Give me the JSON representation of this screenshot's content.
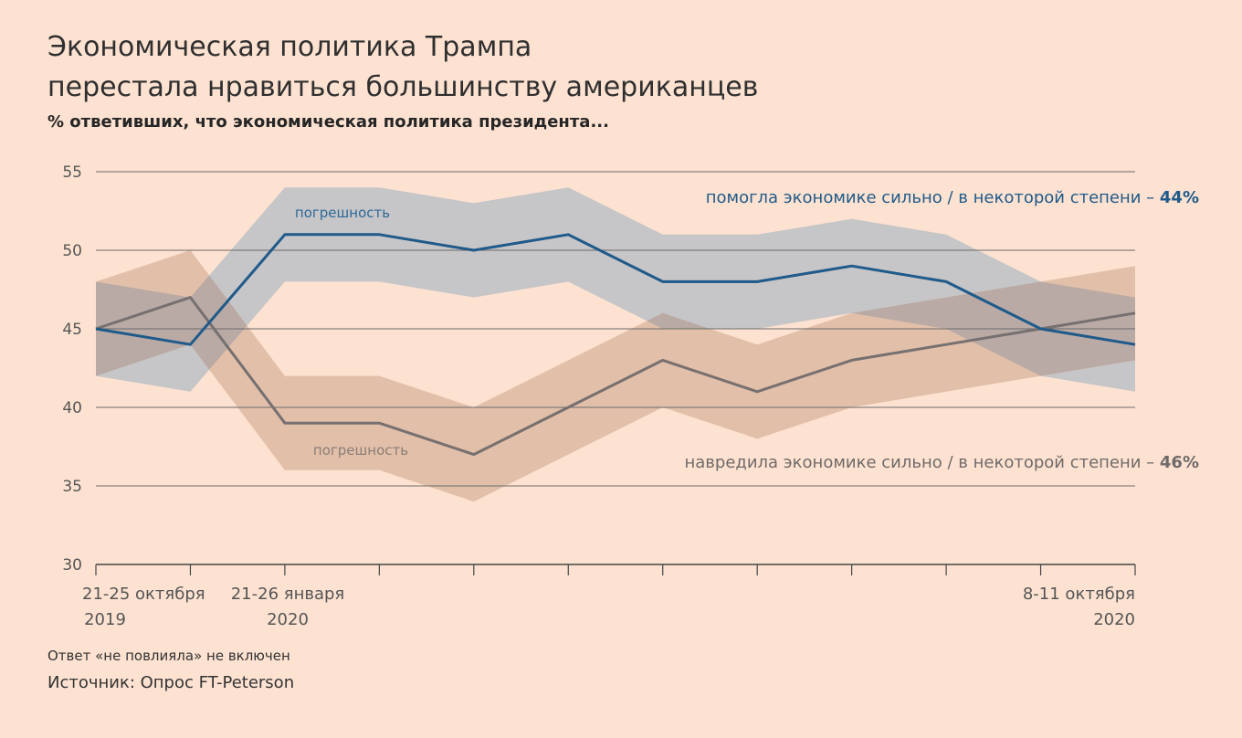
{
  "header": {
    "title_line1": "Экономическая политика Трампа",
    "title_line2": "перестала нравиться большинству американцев",
    "subtitle": "% ответивших, что экономическая политика президента..."
  },
  "chart_data": {
    "type": "line",
    "ylim": [
      30,
      55
    ],
    "yticks": [
      30,
      35,
      40,
      45,
      50,
      55
    ],
    "grid": true,
    "x": [
      "21-25 октября 2019",
      "",
      "21-26 января 2020",
      "",
      "",
      "",
      "",
      "",
      "",
      "",
      "",
      "8-11 октября 2020"
    ],
    "xtick_labels": [
      {
        "index": 0,
        "line1": "21-25 октября",
        "line2": "2019"
      },
      {
        "index": 2,
        "line1": "21-26 января",
        "line2": "2020"
      },
      {
        "index": 11,
        "line1": "8-11 октября",
        "line2": "2020"
      }
    ],
    "series": [
      {
        "name": "помогла экономике сильно / в некоторой степени",
        "final_label": "44%",
        "color": "#1f5a8a",
        "values": [
          45,
          44,
          51,
          51,
          50,
          51,
          48,
          48,
          49,
          48,
          45,
          44
        ],
        "band_upper": [
          48,
          47,
          54,
          54,
          53,
          54,
          51,
          51,
          52,
          51,
          48,
          47
        ],
        "band_lower": [
          42,
          41,
          48,
          48,
          47,
          48,
          45,
          45,
          46,
          45,
          42,
          41
        ]
      },
      {
        "name": "навредила экономике сильно / в некоторой степени",
        "final_label": "46%",
        "color": "#767070",
        "values": [
          45,
          47,
          39,
          39,
          37,
          40,
          43,
          41,
          43,
          44,
          45,
          46
        ],
        "band_upper": [
          48,
          50,
          42,
          42,
          40,
          43,
          46,
          44,
          46,
          47,
          48,
          49
        ],
        "band_lower": [
          42,
          44,
          36,
          36,
          34,
          37,
          40,
          38,
          40,
          41,
          42,
          43
        ]
      }
    ],
    "annotations": [
      "погрешность",
      "погрешность"
    ],
    "colors": {
      "blue_band": "#c6c5c7",
      "gray_band": "#e2bfa8",
      "overlap_band": "#b9aaa5",
      "grid": "#6b6b6b",
      "axis": "#444444"
    }
  },
  "footer": {
    "note": "Ответ «не повлияла» не включен",
    "source": "Источник: Опрос FT-Peterson"
  }
}
